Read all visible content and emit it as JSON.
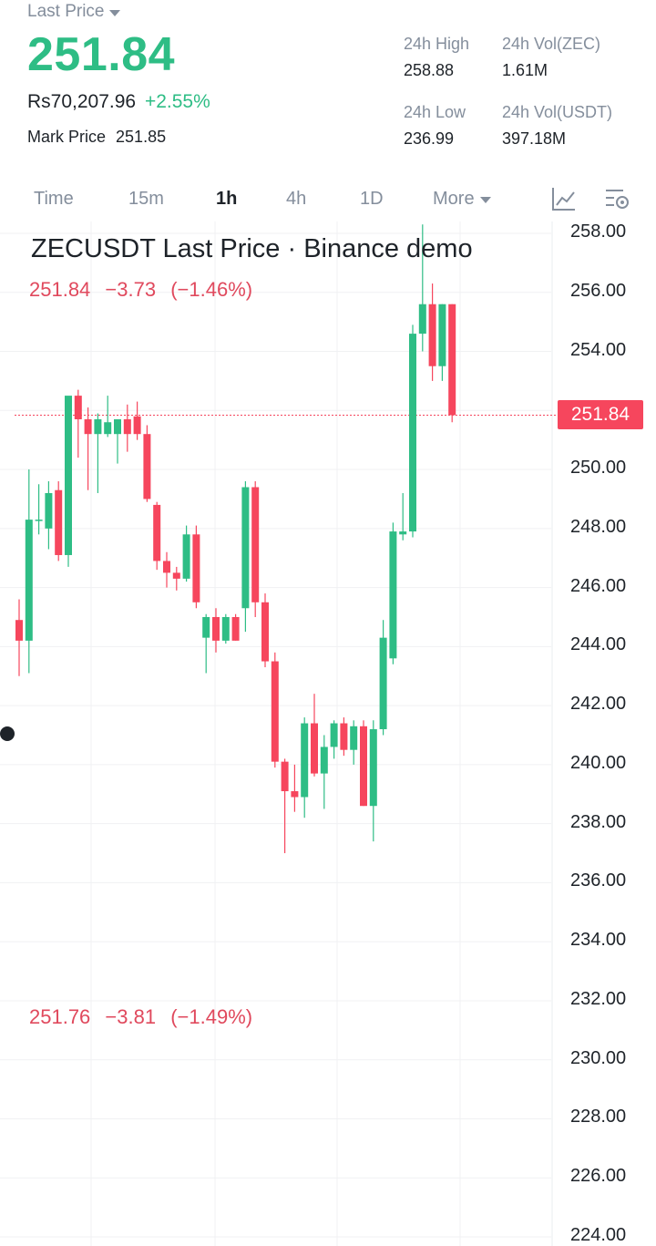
{
  "header": {
    "price_type_label": "Last Price",
    "last_price": "251.84",
    "fiat_price": "Rs70,207.96",
    "change_percent": "+2.55%",
    "mark_price_label": "Mark Price",
    "mark_price": "251.85",
    "stats": {
      "high_label": "24h High",
      "high_value": "258.88",
      "vol_base_label": "24h Vol(ZEC)",
      "vol_base_value": "1.61M",
      "low_label": "24h Low",
      "low_value": "236.99",
      "vol_quote_label": "24h Vol(USDT)",
      "vol_quote_value": "397.18M"
    }
  },
  "tabs": [
    {
      "label": "Time"
    },
    {
      "label": "15m"
    },
    {
      "label": "1h",
      "active": true
    },
    {
      "label": "4h"
    },
    {
      "label": "1D"
    },
    {
      "label": "More"
    }
  ],
  "toolbar_icons": [
    "indicators-icon",
    "chart-settings-icon"
  ],
  "chart": {
    "title": "ZECUSDT Last Price · Binance demo",
    "ohlc_top": {
      "price": "251.84",
      "change": "−3.73",
      "percent": "(−1.46%)"
    },
    "ohlc_bottom": {
      "price": "251.76",
      "change": "−3.81",
      "percent": "(−1.49%)"
    },
    "current_price_tag": "251.84",
    "y_ticks": [
      "258.00",
      "256.00",
      "254.00",
      "252.00",
      "250.00",
      "248.00",
      "246.00",
      "244.00",
      "242.00",
      "240.00",
      "238.00",
      "236.00",
      "234.00",
      "232.00",
      "230.00",
      "228.00",
      "226.00",
      "224.00"
    ]
  },
  "colors": {
    "up": "#2ebd85",
    "down": "#f6465d",
    "accent_text_red": "#e0495d",
    "muted": "#848e9c",
    "text": "#1e2329"
  },
  "chart_data": {
    "type": "candlestick",
    "ylim": [
      224,
      258
    ],
    "y_ticks": [
      258,
      256,
      254,
      252,
      250,
      248,
      246,
      244,
      242,
      240,
      238,
      236,
      234,
      232,
      230,
      228,
      226,
      224
    ],
    "current_price": 251.84,
    "candles": [
      {
        "o": 244.9,
        "h": 245.6,
        "l": 243.0,
        "c": 244.2
      },
      {
        "o": 244.2,
        "h": 250.0,
        "l": 243.1,
        "c": 248.3
      },
      {
        "o": 248.3,
        "h": 249.5,
        "l": 247.8,
        "c": 248.3
      },
      {
        "o": 248.0,
        "h": 249.6,
        "l": 247.3,
        "c": 249.2
      },
      {
        "o": 249.3,
        "h": 249.6,
        "l": 246.9,
        "c": 247.1
      },
      {
        "o": 247.1,
        "h": 252.4,
        "l": 246.7,
        "c": 252.5
      },
      {
        "o": 252.5,
        "h": 252.7,
        "l": 250.4,
        "c": 251.7
      },
      {
        "o": 251.7,
        "h": 252.1,
        "l": 249.3,
        "c": 251.2
      },
      {
        "o": 251.2,
        "h": 251.9,
        "l": 249.2,
        "c": 251.7
      },
      {
        "o": 251.2,
        "h": 252.5,
        "l": 251.1,
        "c": 251.6
      },
      {
        "o": 251.2,
        "h": 251.6,
        "l": 250.2,
        "c": 251.7
      },
      {
        "o": 251.7,
        "h": 252.2,
        "l": 250.6,
        "c": 251.2
      },
      {
        "o": 251.8,
        "h": 252.3,
        "l": 251.0,
        "c": 251.2
      },
      {
        "o": 251.2,
        "h": 251.5,
        "l": 248.9,
        "c": 249.0
      },
      {
        "o": 248.8,
        "h": 248.9,
        "l": 246.6,
        "c": 246.9
      },
      {
        "o": 246.9,
        "h": 247.2,
        "l": 246.0,
        "c": 246.5
      },
      {
        "o": 246.5,
        "h": 246.7,
        "l": 245.9,
        "c": 246.3
      },
      {
        "o": 246.3,
        "h": 248.1,
        "l": 246.2,
        "c": 247.8
      },
      {
        "o": 247.8,
        "h": 248.1,
        "l": 245.3,
        "c": 245.5
      },
      {
        "o": 244.3,
        "h": 245.1,
        "l": 243.1,
        "c": 245.0
      },
      {
        "o": 245.0,
        "h": 245.3,
        "l": 243.8,
        "c": 244.2
      },
      {
        "o": 244.2,
        "h": 245.1,
        "l": 244.1,
        "c": 245.0
      },
      {
        "o": 245.0,
        "h": 245.1,
        "l": 244.2,
        "c": 244.2
      },
      {
        "o": 245.3,
        "h": 249.6,
        "l": 244.5,
        "c": 249.4
      },
      {
        "o": 249.4,
        "h": 249.6,
        "l": 245.0,
        "c": 245.5
      },
      {
        "o": 245.5,
        "h": 245.8,
        "l": 243.3,
        "c": 243.5
      },
      {
        "o": 243.5,
        "h": 243.8,
        "l": 239.9,
        "c": 240.1
      },
      {
        "o": 240.1,
        "h": 240.2,
        "l": 237.0,
        "c": 239.1
      },
      {
        "o": 239.1,
        "h": 240.0,
        "l": 238.4,
        "c": 238.9
      },
      {
        "o": 238.9,
        "h": 241.6,
        "l": 238.2,
        "c": 241.4
      },
      {
        "o": 241.4,
        "h": 242.4,
        "l": 239.6,
        "c": 239.7
      },
      {
        "o": 239.7,
        "h": 241.0,
        "l": 238.5,
        "c": 240.6
      },
      {
        "o": 240.6,
        "h": 241.5,
        "l": 240.2,
        "c": 241.4
      },
      {
        "o": 241.4,
        "h": 241.6,
        "l": 240.3,
        "c": 240.5
      },
      {
        "o": 240.5,
        "h": 241.5,
        "l": 240.0,
        "c": 241.3
      },
      {
        "o": 241.3,
        "h": 241.5,
        "l": 238.6,
        "c": 238.6
      },
      {
        "o": 238.6,
        "h": 241.5,
        "l": 237.4,
        "c": 241.2
      },
      {
        "o": 241.2,
        "h": 244.9,
        "l": 241.0,
        "c": 244.3
      },
      {
        "o": 243.6,
        "h": 248.2,
        "l": 243.4,
        "c": 247.9
      },
      {
        "o": 247.8,
        "h": 249.2,
        "l": 247.6,
        "c": 247.9
      },
      {
        "o": 247.9,
        "h": 254.9,
        "l": 247.7,
        "c": 254.6
      },
      {
        "o": 254.6,
        "h": 258.3,
        "l": 254.0,
        "c": 255.6
      },
      {
        "o": 255.6,
        "h": 256.3,
        "l": 253.0,
        "c": 253.5
      },
      {
        "o": 253.5,
        "h": 255.6,
        "l": 253.0,
        "c": 255.6
      },
      {
        "o": 255.6,
        "h": 255.6,
        "l": 251.6,
        "c": 251.84
      }
    ]
  }
}
